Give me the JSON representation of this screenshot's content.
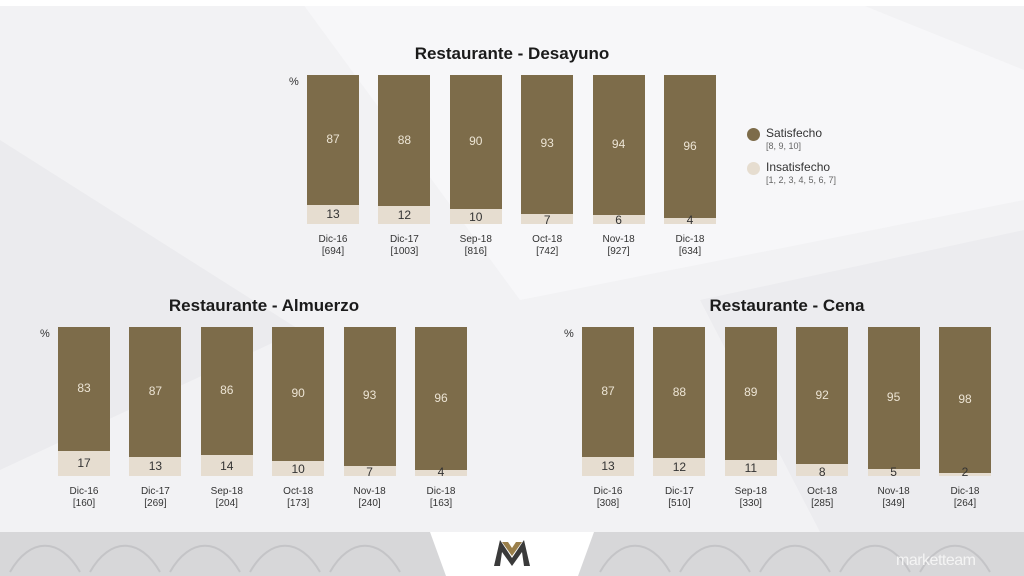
{
  "legend": {
    "items": [
      {
        "name": "Satisfecho",
        "sub": "[8, 9, 10]",
        "color": "#7d6c4a"
      },
      {
        "name": "Insatisfecho",
        "sub": "[1, 2, 3, 4, 5, 6, 7]",
        "color": "#e6ddd0"
      }
    ]
  },
  "brand": {
    "name": "marketteam"
  },
  "chart_data": [
    {
      "type": "bar",
      "stacked": true,
      "title": "Restaurante - Desayuno",
      "unit": "%",
      "categories": [
        "Dic-16",
        "Dic-17",
        "Sep-18",
        "Oct-18",
        "Nov-18",
        "Dic-18"
      ],
      "sample_sizes": [
        "[694]",
        "[1003]",
        "[816]",
        "[742]",
        "[927]",
        "[634]"
      ],
      "series": [
        {
          "name": "Satisfecho",
          "values": [
            87,
            88,
            90,
            93,
            94,
            96
          ]
        },
        {
          "name": "Insatisfecho",
          "values": [
            13,
            12,
            10,
            7,
            6,
            4
          ]
        }
      ],
      "ylim": [
        0,
        100
      ]
    },
    {
      "type": "bar",
      "stacked": true,
      "title": "Restaurante - Almuerzo",
      "unit": "%",
      "categories": [
        "Dic-16",
        "Dic-17",
        "Sep-18",
        "Oct-18",
        "Nov-18",
        "Dic-18"
      ],
      "sample_sizes": [
        "[160]",
        "[269]",
        "[204]",
        "[173]",
        "[240]",
        "[163]"
      ],
      "series": [
        {
          "name": "Satisfecho",
          "values": [
            83,
            87,
            86,
            90,
            93,
            96
          ]
        },
        {
          "name": "Insatisfecho",
          "values": [
            17,
            13,
            14,
            10,
            7,
            4
          ]
        }
      ],
      "ylim": [
        0,
        100
      ]
    },
    {
      "type": "bar",
      "stacked": true,
      "title": "Restaurante - Cena",
      "unit": "%",
      "categories": [
        "Dic-16",
        "Dic-17",
        "Sep-18",
        "Oct-18",
        "Nov-18",
        "Dic-18"
      ],
      "sample_sizes": [
        "[308]",
        "[510]",
        "[330]",
        "[285]",
        "[349]",
        "[264]"
      ],
      "series": [
        {
          "name": "Satisfecho",
          "values": [
            87,
            88,
            89,
            92,
            95,
            98
          ]
        },
        {
          "name": "Insatisfecho",
          "values": [
            13,
            12,
            11,
            8,
            5,
            2
          ]
        }
      ],
      "ylim": [
        0,
        100
      ]
    }
  ]
}
